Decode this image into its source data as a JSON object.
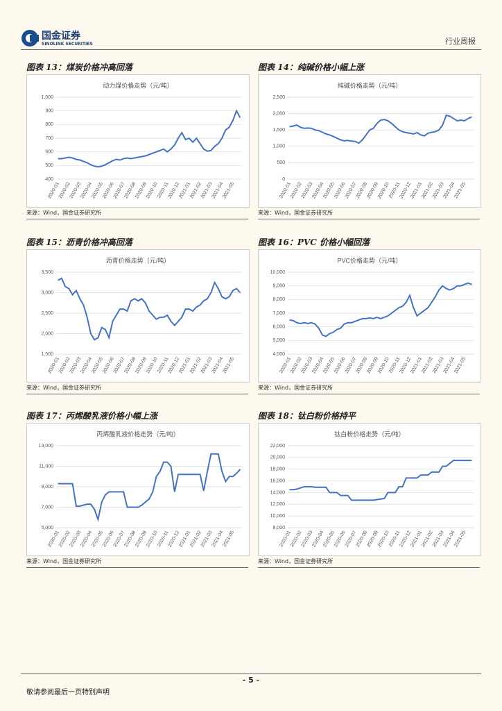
{
  "header": {
    "company": "国金证券",
    "company_en": "SINOLINK SECURITIES",
    "report_type": "行业周报"
  },
  "chart_data": [
    {
      "type": "line",
      "figure_title": "图表 13：煤炭价格冲高回落",
      "title": "动力煤价格走势（元/吨）",
      "source": "来源：Wind，国金证券研究所",
      "categories": [
        "2020-01",
        null,
        null,
        "2020-02",
        null,
        null,
        "2020-03",
        null,
        null,
        "2020-04",
        null,
        null,
        "2020-05",
        null,
        null,
        "2020-06",
        null,
        null,
        "2020-07",
        null,
        null,
        "2020-08",
        null,
        null,
        "2020-09",
        null,
        null,
        "2020-10",
        null,
        null,
        "2020-11",
        null,
        null,
        "2020-12",
        null,
        null,
        "2021-01",
        null,
        null,
        "2021-02",
        null,
        null,
        "2021-03",
        null,
        null,
        "2021-04",
        null,
        null,
        "2021-05",
        null,
        null
      ],
      "color": "#4472c4",
      "values": [
        550,
        550,
        555,
        560,
        555,
        545,
        540,
        530,
        520,
        505,
        495,
        490,
        495,
        505,
        520,
        535,
        545,
        540,
        550,
        555,
        550,
        555,
        560,
        565,
        570,
        580,
        590,
        600,
        610,
        620,
        600,
        620,
        650,
        700,
        740,
        690,
        700,
        670,
        700,
        660,
        620,
        605,
        610,
        640,
        660,
        700,
        760,
        780,
        830,
        900,
        850
      ],
      "ylim": [
        400,
        1000
      ],
      "yticks": [
        400,
        500,
        600,
        700,
        800,
        900,
        {
          "value": 1000,
          "label": "1,000"
        }
      ]
    },
    {
      "type": "line",
      "figure_title": "图表 14：纯碱价格小幅上涨",
      "title": "纯碱价格走势（元/吨）",
      "source": "来源：Wind，国金证券研究所",
      "categories": [
        "2020-01",
        null,
        null,
        "2020-02",
        null,
        null,
        "2020-03",
        null,
        null,
        "2020-04",
        null,
        null,
        "2020-05",
        null,
        null,
        "2020-06",
        null,
        null,
        "2020-07",
        null,
        null,
        "2020-08",
        null,
        null,
        "2020-09",
        null,
        null,
        "2020-10",
        null,
        null,
        "2020-11",
        null,
        null,
        "2020-12",
        null,
        null,
        "2021-01",
        null,
        null,
        "2021-02",
        null,
        null,
        "2021-03",
        null,
        null,
        "2021-04",
        null,
        null,
        "2021-05",
        null,
        null
      ],
      "color": "#4472c4",
      "values": [
        1600,
        1620,
        1650,
        1580,
        1550,
        1560,
        1550,
        1500,
        1480,
        1430,
        1380,
        1350,
        1300,
        1250,
        1200,
        1170,
        1180,
        1160,
        1150,
        1100,
        1200,
        1350,
        1500,
        1550,
        1700,
        1800,
        1820,
        1780,
        1700,
        1600,
        1500,
        1450,
        1420,
        1400,
        1380,
        1420,
        1350,
        1320,
        1400,
        1430,
        1450,
        1500,
        1650,
        1950,
        1920,
        1850,
        1780,
        1800,
        1780,
        1850,
        1900
      ],
      "ylim": [
        0,
        2500
      ],
      "yticks": [
        0,
        500,
        {
          "value": 1000,
          "label": "1,000"
        },
        {
          "value": 1500,
          "label": "1,500"
        },
        {
          "value": 2000,
          "label": "2,000"
        },
        {
          "value": 2500,
          "label": "2,500"
        }
      ]
    },
    {
      "type": "line",
      "figure_title": "图表 15：沥青价格冲高回落",
      "title": "沥青价格走势（元/吨）",
      "source": "来源：Wind，国金证券研究所",
      "categories": [
        "2020-01",
        null,
        null,
        "2020-02",
        null,
        null,
        "2020-03",
        null,
        null,
        "2020-04",
        null,
        null,
        "2020-05",
        null,
        null,
        "2020-06",
        null,
        null,
        "2020-07",
        null,
        null,
        "2020-08",
        null,
        null,
        "2020-09",
        null,
        null,
        "2020-10",
        null,
        null,
        "2020-11",
        null,
        null,
        "2020-12",
        null,
        null,
        "2021-01",
        null,
        null,
        "2021-02",
        null,
        null,
        "2021-03",
        null,
        null,
        "2021-04",
        null,
        null,
        "2021-05",
        null,
        null
      ],
      "color": "#4472c4",
      "values": [
        3300,
        3350,
        3150,
        3100,
        2950,
        3050,
        2850,
        2700,
        2400,
        2000,
        1850,
        1900,
        2150,
        2100,
        1900,
        2300,
        2450,
        2600,
        2600,
        2550,
        2800,
        2850,
        2800,
        2850,
        2750,
        2550,
        2450,
        2350,
        2400,
        2400,
        2450,
        2300,
        2200,
        2300,
        2400,
        2600,
        2600,
        2550,
        2650,
        2700,
        2800,
        2850,
        3000,
        3250,
        3100,
        2900,
        2850,
        2900,
        3050,
        3100,
        3000
      ],
      "ylim": [
        1500,
        3500
      ],
      "yticks": [
        {
          "value": 1500,
          "label": "1,500"
        },
        {
          "value": 2000,
          "label": "2,000"
        },
        {
          "value": 2500,
          "label": "2,500"
        },
        {
          "value": 3000,
          "label": "3,000"
        },
        {
          "value": 3500,
          "label": "3,500"
        }
      ]
    },
    {
      "type": "line",
      "figure_title": "图表 16：PVC 价格小幅回落",
      "title": "PVC价格走势（元/吨）",
      "source": "来源：Wind，国金证券研究所",
      "categories": [
        "2020-01",
        null,
        null,
        "2020-02",
        null,
        null,
        "2020-03",
        null,
        null,
        "2020-04",
        null,
        null,
        "2020-05",
        null,
        null,
        "2020-06",
        null,
        null,
        "2020-07",
        null,
        null,
        "2020-08",
        null,
        null,
        "2020-09",
        null,
        null,
        "2020-10",
        null,
        null,
        "2020-11",
        null,
        null,
        "2020-12",
        null,
        null,
        "2021-01",
        null,
        null,
        "2021-02",
        null,
        null,
        "2021-03",
        null,
        null,
        "2021-04",
        null,
        null,
        "2021-05",
        null,
        null
      ],
      "color": "#4472c4",
      "values": [
        6500,
        6450,
        6300,
        6250,
        6300,
        6250,
        6300,
        6200,
        5900,
        5400,
        5300,
        5500,
        5600,
        5800,
        5900,
        6200,
        6300,
        6300,
        6400,
        6500,
        6600,
        6600,
        6650,
        6600,
        6700,
        6600,
        6700,
        6800,
        7000,
        7200,
        7400,
        7500,
        7800,
        8300,
        7400,
        6800,
        7000,
        7200,
        7400,
        7800,
        8200,
        8700,
        9000,
        8800,
        8700,
        8800,
        9000,
        9000,
        9100,
        9200,
        9100
      ],
      "ylim": [
        4000,
        10000
      ],
      "yticks": [
        {
          "value": 4000,
          "label": "4,000"
        },
        {
          "value": 5000,
          "label": "5,000"
        },
        {
          "value": 6000,
          "label": "6,000"
        },
        {
          "value": 7000,
          "label": "7,000"
        },
        {
          "value": 8000,
          "label": "8,000"
        },
        {
          "value": 9000,
          "label": "9,000"
        },
        {
          "value": 10000,
          "label": "10,000"
        }
      ]
    },
    {
      "type": "line",
      "figure_title": "图表 17：丙烯酸乳液价格小幅上涨",
      "title": "丙烯酸乳液价格走势（元/吨）",
      "source": "来源：Wind，国金证券研究所",
      "categories": [
        "2020-01",
        null,
        null,
        "2020-02",
        null,
        null,
        "2020-03",
        null,
        null,
        "2020-04",
        null,
        null,
        "2020-05",
        null,
        null,
        "2020-06",
        null,
        null,
        "2020-07",
        null,
        null,
        "2020-08",
        null,
        null,
        "2020-09",
        null,
        null,
        "2020-10",
        null,
        null,
        "2020-11",
        null,
        null,
        "2020-12",
        null,
        null,
        "2021-01",
        null,
        null,
        "2021-02",
        null,
        null,
        "2021-03",
        null,
        null,
        "2021-04",
        null,
        null,
        "2021-05",
        null,
        null
      ],
      "color": "#4472c4",
      "values": [
        9300,
        9300,
        9300,
        9300,
        9300,
        7100,
        7100,
        7200,
        7300,
        7300,
        6800,
        5800,
        7500,
        8200,
        8500,
        8500,
        8500,
        8500,
        8500,
        7000,
        7000,
        7000,
        7000,
        7200,
        7500,
        7800,
        8500,
        10000,
        10500,
        11400,
        11400,
        11000,
        8500,
        10200,
        10200,
        10200,
        10200,
        10200,
        10200,
        10200,
        8600,
        10500,
        12200,
        12200,
        12200,
        10500,
        9500,
        10000,
        10000,
        10300,
        10700
      ],
      "ylim": [
        5000,
        13000
      ],
      "yticks": [
        {
          "value": 5000,
          "label": "5,000"
        },
        {
          "value": 7000,
          "label": "7,000"
        },
        {
          "value": 9000,
          "label": "9,000"
        },
        {
          "value": 11000,
          "label": "11,000"
        },
        {
          "value": 13000,
          "label": "13,000"
        }
      ]
    },
    {
      "type": "line",
      "figure_title": "图表 18：钛白粉价格持平",
      "title": "钛白粉价格走势（元/吨）",
      "source": "来源：Wind，国金证券研究所",
      "categories": [
        "2020-01",
        null,
        null,
        "2020-02",
        null,
        null,
        "2020-03",
        null,
        null,
        "2020-04",
        null,
        null,
        "2020-05",
        null,
        null,
        "2020-06",
        null,
        null,
        "2020-07",
        null,
        null,
        "2020-08",
        null,
        null,
        "2020-09",
        null,
        null,
        "2020-10",
        null,
        null,
        "2020-11",
        null,
        null,
        "2020-12",
        null,
        null,
        "2021-01",
        null,
        null,
        "2021-02",
        null,
        null,
        "2021-03",
        null,
        null,
        "2021-04",
        null,
        null,
        "2021-05",
        null,
        null
      ],
      "color": "#4472c4",
      "values": [
        14500,
        14500,
        14600,
        14800,
        15000,
        15000,
        15000,
        14900,
        14900,
        14900,
        14900,
        14000,
        14000,
        14000,
        13500,
        13500,
        13500,
        12700,
        12700,
        12700,
        12700,
        12700,
        12700,
        12700,
        12800,
        12900,
        13000,
        14000,
        14000,
        14000,
        15000,
        15000,
        16500,
        16500,
        16500,
        16500,
        17000,
        17000,
        17000,
        17500,
        17500,
        17500,
        18500,
        18500,
        19000,
        19500,
        19500,
        19500,
        19500,
        19500,
        19500
      ],
      "ylim": [
        8000,
        22000
      ],
      "yticks": [
        {
          "value": 8000,
          "label": "8,000"
        },
        {
          "value": 10000,
          "label": "10,000"
        },
        {
          "value": 12000,
          "label": "12,000"
        },
        {
          "value": 14000,
          "label": "14,000"
        },
        {
          "value": 16000,
          "label": "16,000"
        },
        {
          "value": 18000,
          "label": "18,000"
        },
        {
          "value": 20000,
          "label": "20,000"
        },
        {
          "value": 22000,
          "label": "22,000"
        }
      ]
    }
  ],
  "footer": {
    "page": "- 5 -",
    "disclaimer": "敬请参阅最后一页特别声明"
  }
}
